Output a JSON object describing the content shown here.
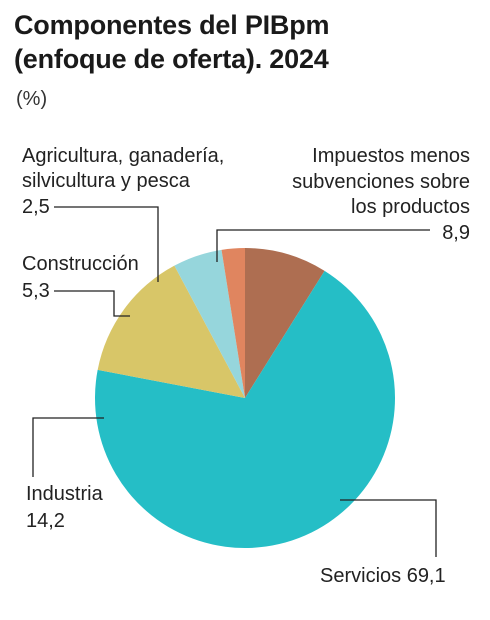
{
  "title_line1": "Componentes del PIBpm",
  "title_line2": "(enfoque de oferta). 2024",
  "unit": "(%)",
  "colors": {
    "servicios": "#25bec6",
    "industria": "#d8c668",
    "construccion": "#96d6dc",
    "agricultura": "#e0855f",
    "impuestos": "#ae6e51",
    "leader": "#222222"
  },
  "chart_data": {
    "type": "pie",
    "title": "Componentes del PIBpm (enfoque de oferta). 2024",
    "unit": "(%)",
    "slices": [
      {
        "key": "impuestos",
        "label_lines": [
          "Impuestos menos",
          "subvenciones sobre",
          "los productos"
        ],
        "value": 8.9,
        "value_text": "8,9"
      },
      {
        "key": "servicios",
        "label_lines": [
          "Servicios"
        ],
        "value": 69.1,
        "value_text": "69,1"
      },
      {
        "key": "industria",
        "label_lines": [
          "Industria"
        ],
        "value": 14.2,
        "value_text": "14,2"
      },
      {
        "key": "construccion",
        "label_lines": [
          "Construcción"
        ],
        "value": 5.3,
        "value_text": "5,3"
      },
      {
        "key": "agricultura",
        "label_lines": [
          "Agricultura, ganadería,",
          "silvicultura y pesca"
        ],
        "value": 2.5,
        "value_text": "2,5"
      }
    ],
    "start_angle": "12 o'clock",
    "direction": "clockwise"
  }
}
